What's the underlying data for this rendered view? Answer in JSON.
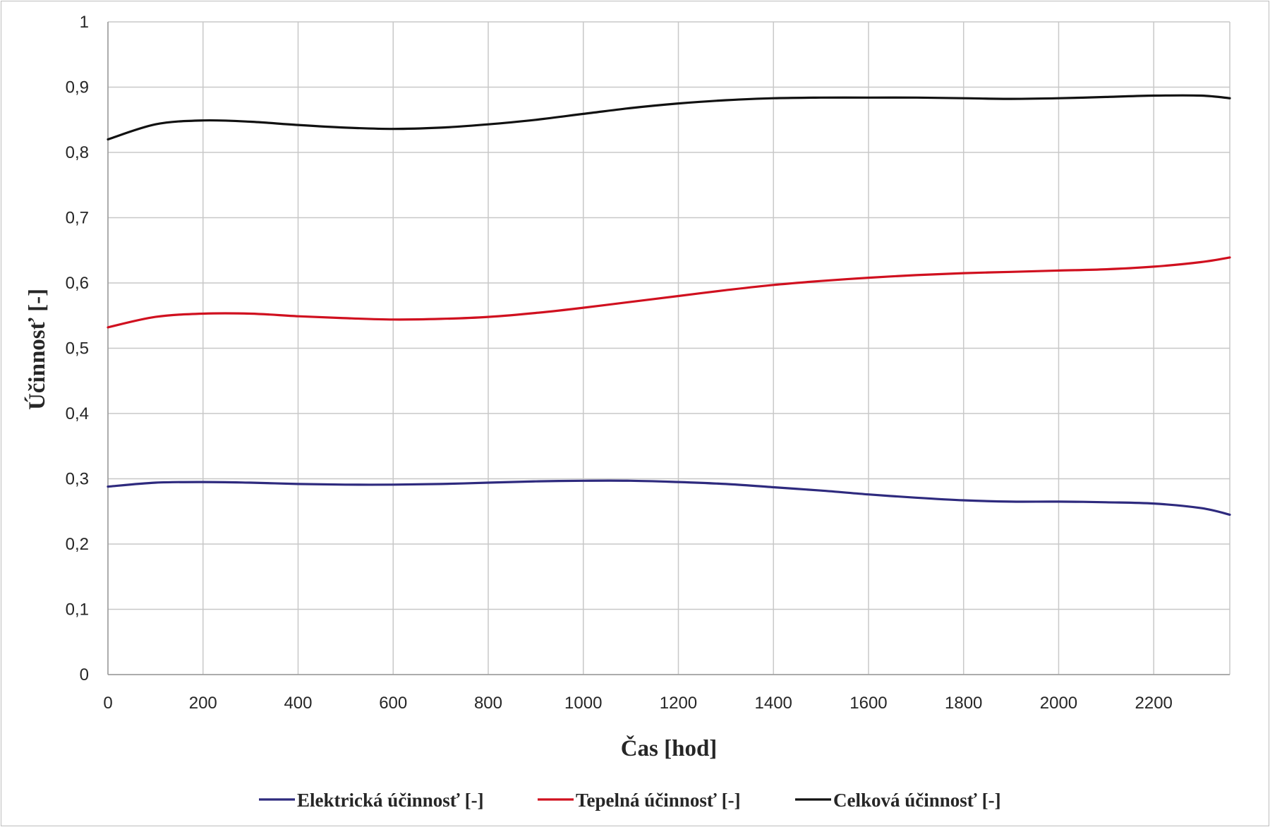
{
  "chart_data": {
    "type": "line",
    "xlabel": "Čas [hod]",
    "ylabel": "Účinnosť [-]",
    "xlim": [
      0,
      2360
    ],
    "ylim": [
      0,
      1
    ],
    "x_ticks": [
      "0",
      "200",
      "400",
      "600",
      "800",
      "1000",
      "1200",
      "1400",
      "1600",
      "1800",
      "2000",
      "2200"
    ],
    "y_ticks": [
      "0",
      "0,1",
      "0,2",
      "0,3",
      "0,4",
      "0,5",
      "0,6",
      "0,7",
      "0,8",
      "0,9",
      "1"
    ],
    "grid": true,
    "legend_position": "bottom",
    "series": [
      {
        "name": "Elektrická účinnosť [-]",
        "color": "#2e2a7e",
        "x": [
          0,
          100,
          200,
          300,
          400,
          500,
          600,
          700,
          800,
          900,
          1000,
          1100,
          1200,
          1300,
          1400,
          1500,
          1600,
          1700,
          1800,
          1900,
          2000,
          2100,
          2200,
          2300,
          2360
        ],
        "y": [
          0.288,
          0.294,
          0.295,
          0.294,
          0.292,
          0.291,
          0.291,
          0.292,
          0.294,
          0.296,
          0.297,
          0.297,
          0.295,
          0.292,
          0.287,
          0.282,
          0.276,
          0.271,
          0.267,
          0.265,
          0.265,
          0.264,
          0.262,
          0.255,
          0.245
        ]
      },
      {
        "name": "Tepelná účinnosť [-]",
        "color": "#d0101f",
        "x": [
          0,
          100,
          200,
          300,
          400,
          500,
          600,
          700,
          800,
          900,
          1000,
          1100,
          1200,
          1300,
          1400,
          1500,
          1600,
          1700,
          1800,
          1900,
          2000,
          2100,
          2200,
          2300,
          2360
        ],
        "y": [
          0.532,
          0.548,
          0.553,
          0.553,
          0.549,
          0.546,
          0.544,
          0.545,
          0.548,
          0.554,
          0.562,
          0.571,
          0.58,
          0.589,
          0.597,
          0.603,
          0.608,
          0.612,
          0.615,
          0.617,
          0.619,
          0.621,
          0.625,
          0.632,
          0.639
        ]
      },
      {
        "name": "Celková účinnosť [-]",
        "color": "#111111",
        "x": [
          0,
          100,
          200,
          300,
          400,
          500,
          600,
          700,
          800,
          900,
          1000,
          1100,
          1200,
          1300,
          1400,
          1500,
          1600,
          1700,
          1800,
          1900,
          2000,
          2100,
          2200,
          2300,
          2360
        ],
        "y": [
          0.82,
          0.843,
          0.849,
          0.847,
          0.842,
          0.838,
          0.836,
          0.838,
          0.843,
          0.85,
          0.859,
          0.868,
          0.875,
          0.88,
          0.883,
          0.884,
          0.884,
          0.884,
          0.883,
          0.882,
          0.883,
          0.885,
          0.887,
          0.887,
          0.883
        ]
      }
    ]
  }
}
